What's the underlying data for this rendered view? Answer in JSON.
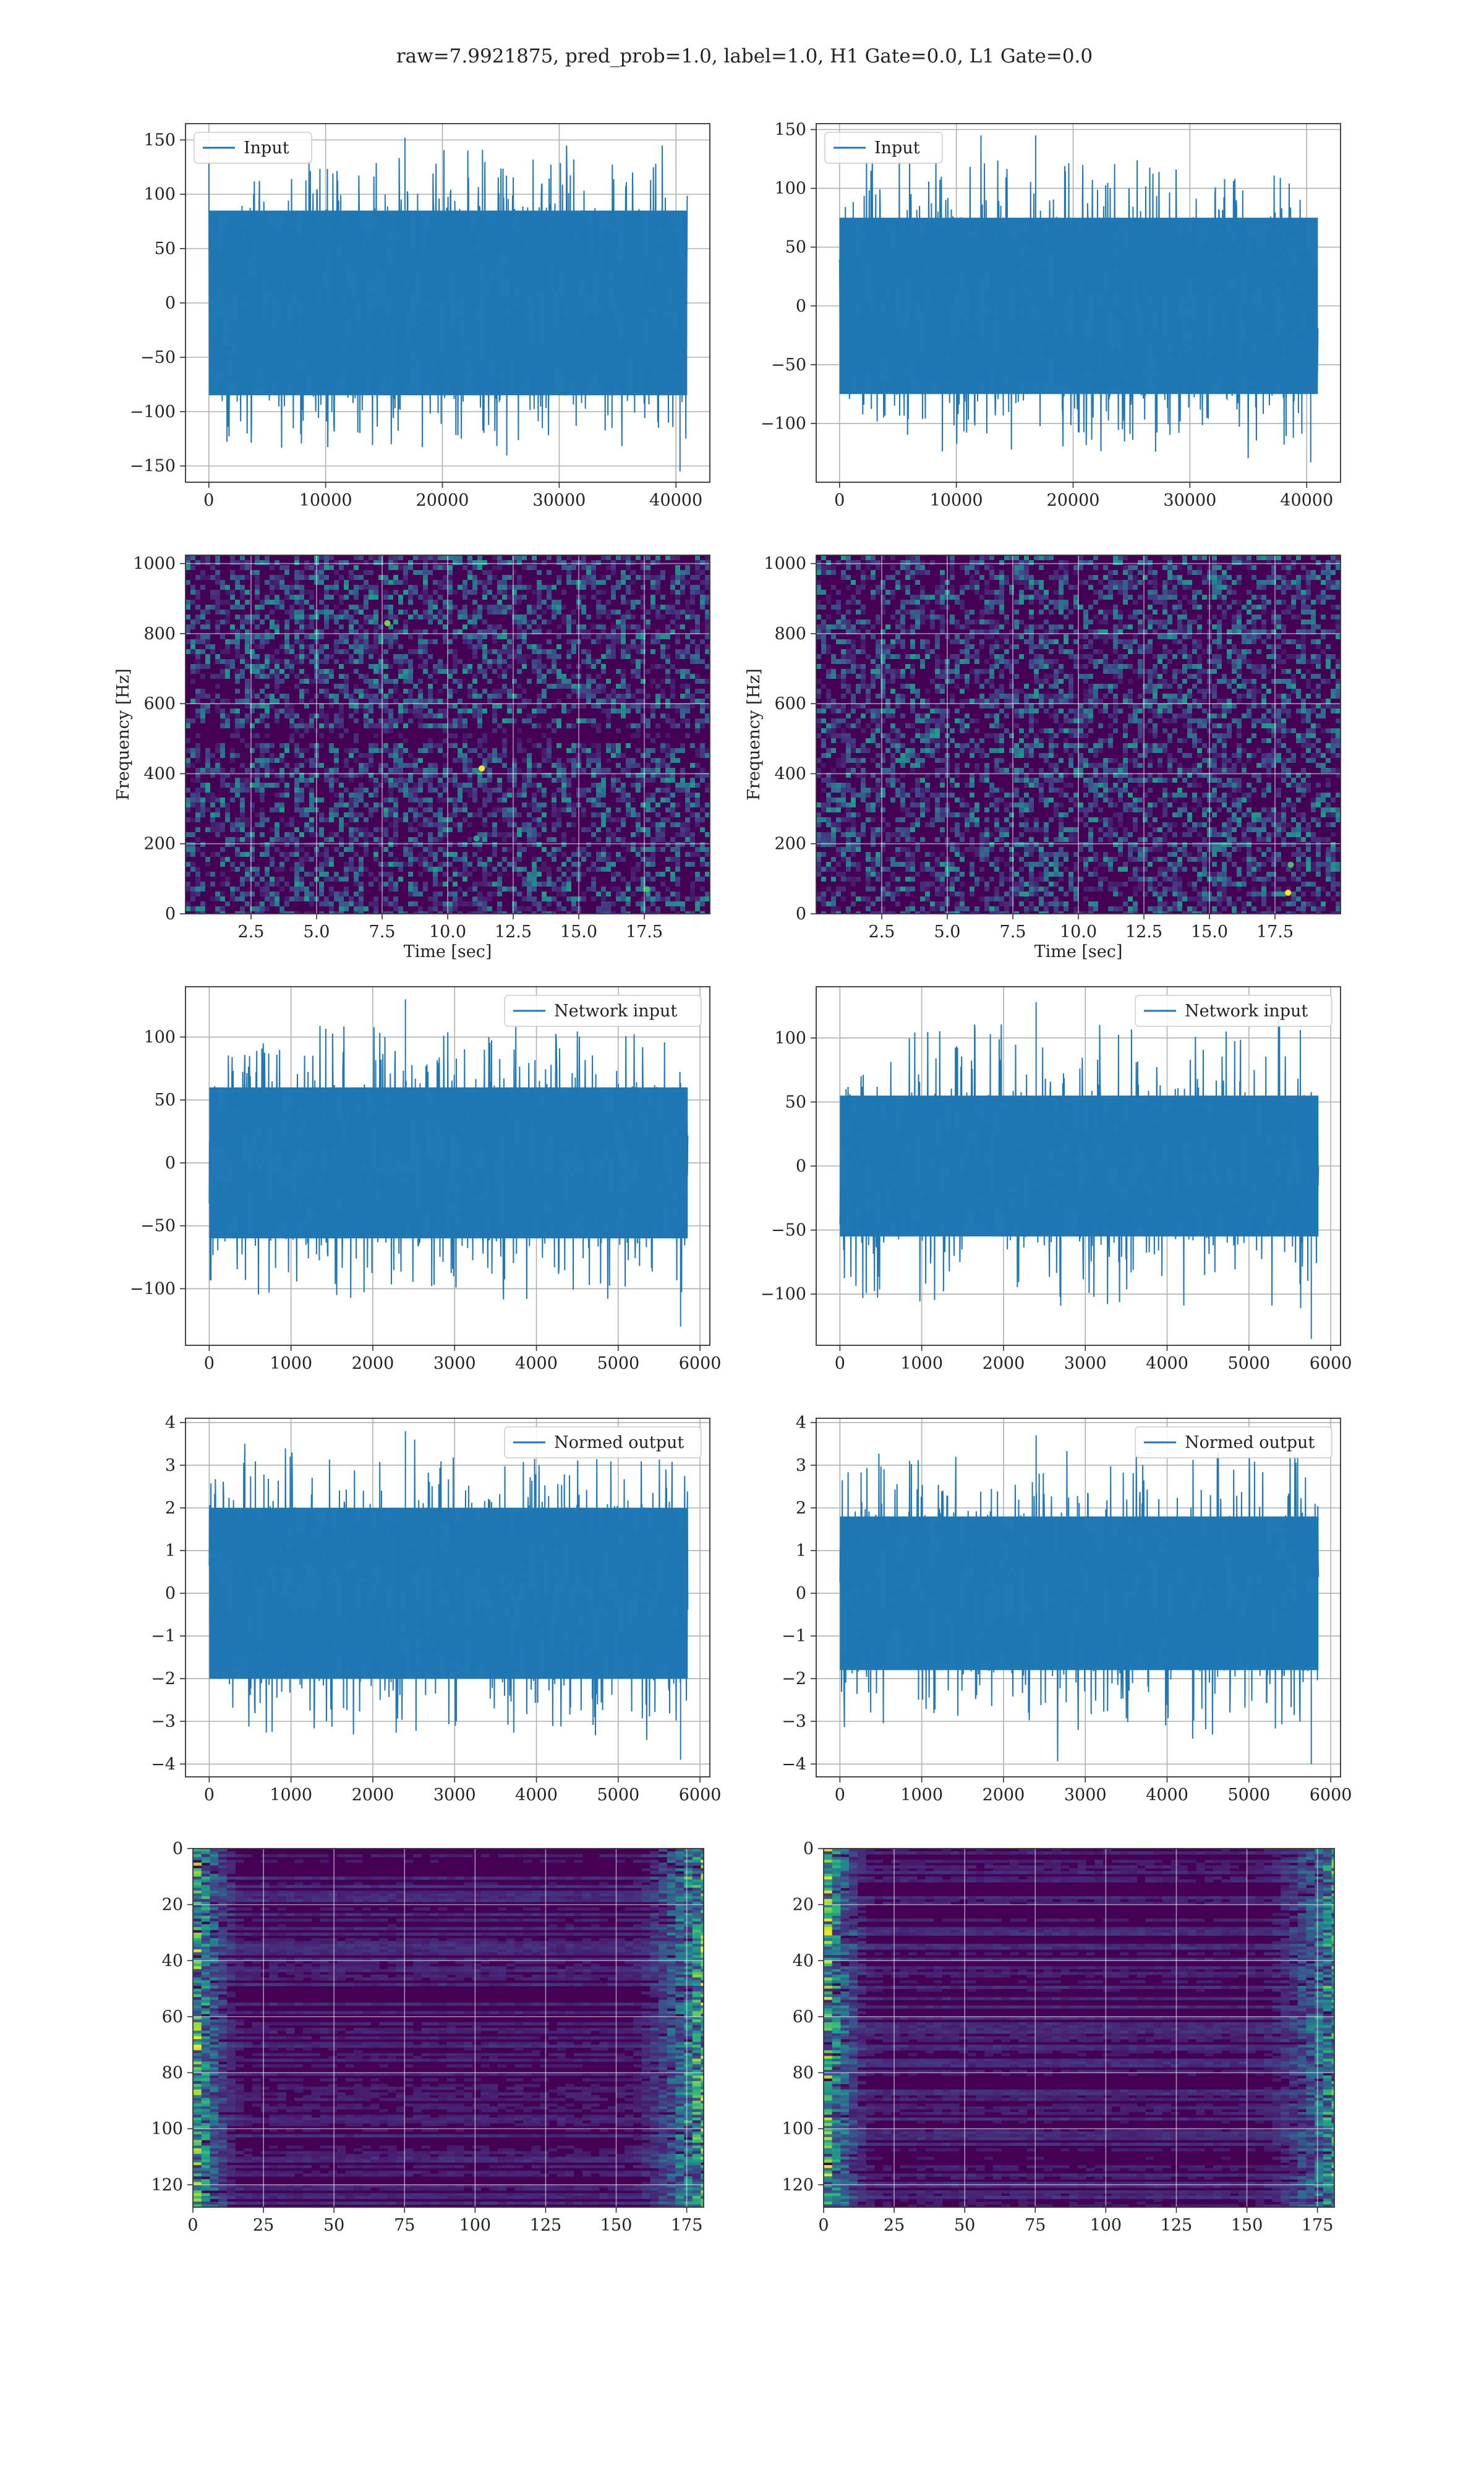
{
  "figure": {
    "suptitle": "raw=7.9921875, pred_prob=1.0, label=1.0, H1 Gate=0.0, L1 Gate=0.0"
  },
  "colors": {
    "series": "#1f77b4",
    "grid": "#b0b0b0",
    "viridis_low": "#440154",
    "viridis_mid": "#21918c",
    "viridis_high": "#fde725"
  },
  "chart_data": [
    {
      "id": "input-h1",
      "type": "line",
      "legend": "Input",
      "legend_loc": "upper-left",
      "grid": true,
      "xlim": [
        -2000,
        42900
      ],
      "ylim": [
        -165,
        165
      ],
      "xticks": [
        0,
        10000,
        20000,
        30000,
        40000
      ],
      "yticks": [
        -150,
        -100,
        -50,
        0,
        50,
        100,
        150
      ],
      "x_range": [
        0,
        40960
      ],
      "envelope": {
        "core": 85,
        "min": -155,
        "max": 152
      }
    },
    {
      "id": "input-l1",
      "type": "line",
      "legend": "Input",
      "legend_loc": "upper-left",
      "grid": true,
      "xlim": [
        -2000,
        42900
      ],
      "ylim": [
        -150,
        155
      ],
      "xticks": [
        0,
        10000,
        20000,
        30000,
        40000
      ],
      "yticks": [
        -100,
        -50,
        0,
        50,
        100,
        150
      ],
      "x_range": [
        0,
        40960
      ],
      "envelope": {
        "core": 75,
        "min": -133,
        "max": 145
      }
    },
    {
      "id": "spec-h1",
      "type": "heatmap",
      "xlabel": "Time [sec]",
      "ylabel": "Frequency [Hz]",
      "grid": true,
      "xlim": [
        0,
        20
      ],
      "ylim": [
        0,
        1024
      ],
      "xticks": [
        2.5,
        5.0,
        7.5,
        10.0,
        12.5,
        15.0,
        17.5
      ],
      "yticks": [
        0,
        200,
        400,
        600,
        800,
        1000
      ],
      "colormap": "viridis",
      "hot_spots": [
        {
          "x": 11.3,
          "y": 415,
          "v": 1.0
        },
        {
          "x": 7.7,
          "y": 830,
          "v": 0.8
        },
        {
          "x": 17.6,
          "y": 70,
          "v": 0.7
        },
        {
          "x": 11.1,
          "y": 215,
          "v": 0.6
        }
      ]
    },
    {
      "id": "spec-l1",
      "type": "heatmap",
      "xlabel": "Time [sec]",
      "ylabel": "Frequency [Hz]",
      "grid": true,
      "xlim": [
        0,
        20
      ],
      "ylim": [
        0,
        1024
      ],
      "xticks": [
        2.5,
        5.0,
        7.5,
        10.0,
        12.5,
        15.0,
        17.5
      ],
      "yticks": [
        0,
        200,
        400,
        600,
        800,
        1000
      ],
      "colormap": "viridis",
      "hot_spots": [
        {
          "x": 18.0,
          "y": 60,
          "v": 1.0
        },
        {
          "x": 18.1,
          "y": 140,
          "v": 0.7
        }
      ]
    },
    {
      "id": "net-h1",
      "type": "line",
      "legend": "Network input",
      "legend_loc": "upper-right",
      "grid": true,
      "xlim": [
        -290,
        6120
      ],
      "ylim": [
        -145,
        140
      ],
      "xticks": [
        0,
        1000,
        2000,
        3000,
        4000,
        5000,
        6000
      ],
      "yticks": [
        -100,
        -50,
        0,
        50,
        100
      ],
      "x_range": [
        0,
        5850
      ],
      "envelope": {
        "core": 60,
        "min": -130,
        "max": 130
      }
    },
    {
      "id": "net-l1",
      "type": "line",
      "legend": "Network input",
      "legend_loc": "upper-right",
      "grid": true,
      "xlim": [
        -290,
        6120
      ],
      "ylim": [
        -140,
        140
      ],
      "xticks": [
        0,
        1000,
        2000,
        3000,
        4000,
        5000,
        6000
      ],
      "yticks": [
        -100,
        -50,
        0,
        50,
        100
      ],
      "x_range": [
        0,
        5850
      ],
      "envelope": {
        "core": 55,
        "min": -135,
        "max": 128
      }
    },
    {
      "id": "norm-h1",
      "type": "line",
      "legend": "Normed output",
      "legend_loc": "upper-right",
      "grid": true,
      "xlim": [
        -290,
        6120
      ],
      "ylim": [
        -4.3,
        4.1
      ],
      "xticks": [
        0,
        1000,
        2000,
        3000,
        4000,
        5000,
        6000
      ],
      "yticks": [
        -4,
        -3,
        -2,
        -1,
        0,
        1,
        2,
        3,
        4
      ],
      "x_range": [
        0,
        5850
      ],
      "envelope": {
        "core": 2.0,
        "min": -3.9,
        "max": 3.8
      }
    },
    {
      "id": "norm-l1",
      "type": "line",
      "legend": "Normed output",
      "legend_loc": "upper-right",
      "grid": true,
      "xlim": [
        -290,
        6120
      ],
      "ylim": [
        -4.3,
        4.1
      ],
      "xticks": [
        0,
        1000,
        2000,
        3000,
        4000,
        5000,
        6000
      ],
      "yticks": [
        -4,
        -3,
        -2,
        -1,
        0,
        1,
        2,
        3,
        4
      ],
      "x_range": [
        0,
        5850
      ],
      "envelope": {
        "core": 1.8,
        "min": -4.0,
        "max": 3.7
      }
    },
    {
      "id": "feat-h1",
      "type": "heatmap",
      "grid": true,
      "xlim": [
        0,
        181
      ],
      "ylim": [
        128,
        0
      ],
      "xticks": [
        0,
        25,
        50,
        75,
        100,
        125,
        150,
        175
      ],
      "yticks": [
        0,
        20,
        40,
        60,
        80,
        100,
        120
      ],
      "colormap": "viridis",
      "rows": 128,
      "cols": 181
    },
    {
      "id": "feat-l1",
      "type": "heatmap",
      "grid": true,
      "xlim": [
        0,
        181
      ],
      "ylim": [
        128,
        0
      ],
      "xticks": [
        0,
        25,
        50,
        75,
        100,
        125,
        150,
        175
      ],
      "yticks": [
        0,
        20,
        40,
        60,
        80,
        100,
        120
      ],
      "colormap": "viridis",
      "rows": 128,
      "cols": 181
    }
  ]
}
